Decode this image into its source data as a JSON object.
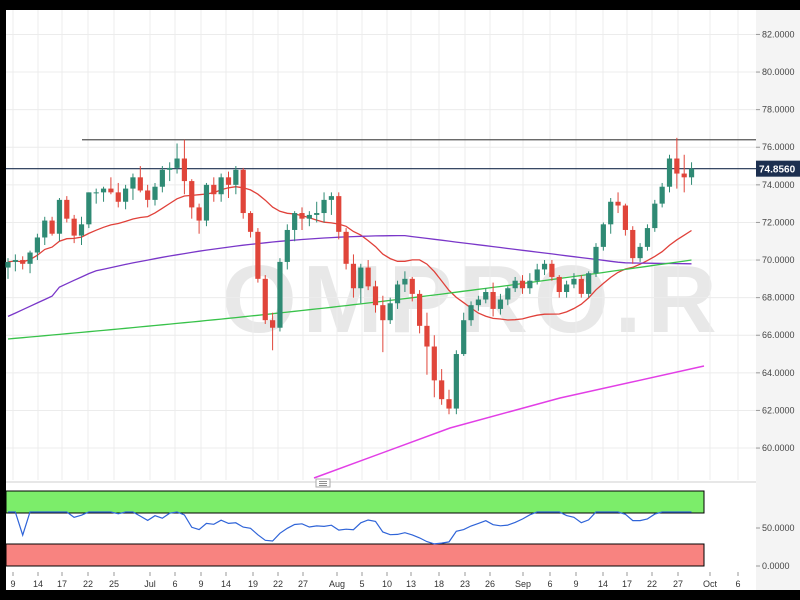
{
  "chart_data": {
    "type": "candlestick",
    "watermark": "OMPRO.R",
    "current_price_label": "74.8560",
    "price_axis": {
      "ticks": [
        "60.0000",
        "62.0000",
        "64.0000",
        "66.0000",
        "68.0000",
        "70.0000",
        "72.0000",
        "74.0000",
        "76.0000",
        "78.0000",
        "80.0000",
        "82.0000"
      ],
      "ylim": [
        58.3,
        83.3
      ]
    },
    "x_axis": {
      "labels": [
        "9",
        "14",
        "17",
        "22",
        "25",
        "Jul",
        "6",
        "9",
        "14",
        "19",
        "22",
        "27",
        "Aug",
        "5",
        "10",
        "13",
        "18",
        "23",
        "26",
        "Sep",
        "6",
        "9",
        "14",
        "17",
        "22",
        "27",
        "Oct",
        "6"
      ]
    },
    "candles": [
      [
        69.6,
        70.1,
        69.0,
        69.9
      ],
      [
        69.9,
        70.3,
        69.4,
        70.0
      ],
      [
        70.0,
        70.2,
        69.5,
        69.8
      ],
      [
        69.8,
        70.5,
        69.3,
        70.4
      ],
      [
        70.4,
        71.4,
        70.0,
        71.2
      ],
      [
        71.2,
        72.3,
        70.8,
        72.1
      ],
      [
        72.1,
        72.3,
        71.3,
        71.4
      ],
      [
        71.4,
        73.3,
        71.0,
        73.2
      ],
      [
        73.2,
        73.4,
        72.0,
        72.2
      ],
      [
        72.2,
        72.4,
        70.9,
        71.3
      ],
      [
        71.3,
        72.3,
        70.8,
        71.9
      ],
      [
        71.9,
        73.6,
        71.7,
        73.6
      ],
      [
        73.6,
        73.8,
        73.0,
        73.6
      ],
      [
        73.6,
        73.9,
        73.1,
        73.8
      ],
      [
        73.8,
        74.4,
        73.5,
        73.6
      ],
      [
        73.6,
        74.1,
        72.8,
        73.1
      ],
      [
        73.1,
        74.0,
        72.7,
        73.8
      ],
      [
        73.8,
        74.6,
        73.2,
        74.4
      ],
      [
        74.4,
        75.0,
        73.6,
        73.7
      ],
      [
        73.7,
        74.0,
        72.8,
        73.2
      ],
      [
        73.2,
        74.1,
        72.9,
        73.9
      ],
      [
        73.9,
        75.0,
        73.6,
        74.8
      ],
      [
        74.8,
        75.2,
        74.2,
        74.9
      ],
      [
        74.9,
        76.2,
        74.6,
        75.4
      ],
      [
        75.4,
        76.4,
        73.5,
        74.2
      ],
      [
        74.2,
        74.3,
        72.2,
        72.8
      ],
      [
        72.8,
        73.0,
        71.4,
        72.1
      ],
      [
        72.1,
        74.1,
        71.8,
        74.0
      ],
      [
        74.0,
        74.4,
        73.1,
        73.5
      ],
      [
        73.5,
        74.6,
        73.1,
        74.4
      ],
      [
        74.4,
        74.7,
        73.3,
        74.0
      ],
      [
        74.0,
        75.0,
        73.5,
        74.8
      ],
      [
        74.8,
        74.9,
        72.2,
        72.5
      ],
      [
        72.5,
        72.6,
        71.2,
        71.5
      ],
      [
        71.5,
        71.7,
        68.8,
        69.0
      ],
      [
        69.0,
        69.2,
        66.6,
        66.8
      ],
      [
        66.8,
        67.2,
        65.2,
        66.4
      ],
      [
        66.4,
        70.1,
        66.2,
        69.9
      ],
      [
        69.9,
        71.9,
        69.5,
        71.6
      ],
      [
        71.6,
        72.6,
        71.0,
        72.5
      ],
      [
        72.5,
        72.8,
        71.6,
        72.2
      ],
      [
        72.2,
        72.6,
        71.8,
        72.4
      ],
      [
        72.4,
        73.1,
        72.0,
        72.5
      ],
      [
        72.5,
        73.6,
        72.0,
        73.2
      ],
      [
        73.2,
        73.6,
        72.4,
        73.4
      ],
      [
        73.4,
        73.6,
        71.1,
        71.5
      ],
      [
        71.5,
        71.7,
        69.5,
        69.8
      ],
      [
        69.8,
        70.3,
        68.0,
        68.5
      ],
      [
        68.5,
        69.8,
        67.7,
        69.6
      ],
      [
        69.6,
        70.0,
        68.4,
        68.6
      ],
      [
        68.6,
        68.9,
        67.2,
        67.6
      ],
      [
        67.6,
        68.1,
        65.1,
        66.8
      ],
      [
        66.8,
        68.0,
        66.6,
        67.7
      ],
      [
        67.7,
        68.9,
        67.4,
        68.7
      ],
      [
        68.7,
        69.4,
        68.3,
        69.0
      ],
      [
        69.0,
        69.1,
        67.8,
        68.2
      ],
      [
        68.2,
        68.4,
        66.1,
        66.5
      ],
      [
        66.5,
        67.2,
        63.9,
        65.4
      ],
      [
        65.4,
        66.0,
        62.7,
        63.6
      ],
      [
        63.6,
        64.2,
        62.3,
        62.6
      ],
      [
        62.6,
        63.1,
        61.8,
        62.1
      ],
      [
        62.1,
        65.2,
        61.8,
        65.0
      ],
      [
        65.0,
        67.2,
        64.9,
        66.8
      ],
      [
        66.8,
        67.8,
        66.5,
        67.6
      ],
      [
        67.6,
        68.1,
        67.3,
        67.9
      ],
      [
        67.9,
        68.5,
        67.7,
        68.3
      ],
      [
        68.3,
        68.8,
        67.0,
        67.4
      ],
      [
        67.4,
        68.2,
        67.1,
        67.9
      ],
      [
        67.9,
        68.6,
        67.6,
        68.5
      ],
      [
        68.5,
        69.1,
        68.3,
        68.9
      ],
      [
        68.9,
        69.2,
        68.2,
        68.5
      ],
      [
        68.5,
        69.3,
        68.2,
        68.9
      ],
      [
        68.9,
        69.8,
        68.7,
        69.5
      ],
      [
        69.5,
        70.0,
        69.2,
        69.8
      ],
      [
        69.8,
        70.0,
        68.9,
        69.1
      ],
      [
        69.1,
        69.2,
        68.0,
        68.3
      ],
      [
        68.3,
        68.9,
        68.0,
        68.7
      ],
      [
        68.7,
        69.3,
        68.5,
        69.0
      ],
      [
        69.0,
        69.2,
        68.0,
        68.2
      ],
      [
        68.2,
        69.4,
        68.0,
        69.3
      ],
      [
        69.3,
        70.9,
        69.1,
        70.7
      ],
      [
        70.7,
        72.0,
        70.5,
        71.9
      ],
      [
        71.9,
        73.3,
        71.4,
        73.1
      ],
      [
        73.1,
        73.6,
        72.5,
        72.9
      ],
      [
        72.9,
        73.0,
        71.3,
        71.6
      ],
      [
        71.6,
        71.8,
        69.8,
        70.1
      ],
      [
        70.1,
        70.9,
        69.9,
        70.7
      ],
      [
        70.7,
        71.9,
        70.5,
        71.7
      ],
      [
        71.7,
        73.2,
        71.5,
        73.0
      ],
      [
        73.0,
        74.1,
        72.8,
        73.9
      ],
      [
        73.9,
        75.6,
        73.6,
        75.4
      ],
      [
        75.4,
        76.5,
        73.8,
        74.6
      ],
      [
        74.6,
        75.6,
        73.6,
        74.4
      ],
      [
        74.4,
        75.2,
        74.0,
        74.86
      ]
    ],
    "indicator": {
      "ticks": [
        "50.0000",
        "0.0000"
      ]
    }
  }
}
